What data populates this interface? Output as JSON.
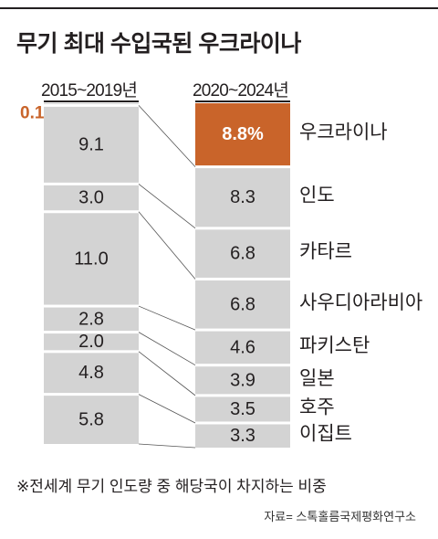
{
  "title": "무기 최대 수입국된 우크라이나",
  "note": "※전세계 무기 인도량 중 해당국이 차지하는 비중",
  "source": "자료= 스톡홀름국제평화연구소",
  "colors": {
    "highlight": "#c9642a",
    "bar": "#d3d3d3",
    "text": "#231f20"
  },
  "chart_data": {
    "type": "bar",
    "stacked": true,
    "orientation": "vertical",
    "unit": "%",
    "columns": [
      "2015~2019년",
      "2020~2024년"
    ],
    "categories": [
      "우크라이나",
      "인도",
      "카타르",
      "사우디아라비아",
      "파키스탄",
      "일본",
      "호주",
      "이집트"
    ],
    "labels_2015_2019": [
      "0.1",
      "9.1",
      "3.0",
      "11.0",
      "2.8",
      "2.0",
      "4.8",
      "5.8"
    ],
    "labels_2020_2024": [
      "8.8%",
      "8.3",
      "6.8",
      "6.8",
      "4.6",
      "3.9",
      "3.5",
      "3.3"
    ],
    "series": [
      {
        "values": [
          0.1,
          9.1,
          3.0,
          11.0,
          2.8,
          2.0,
          4.8,
          5.8
        ]
      },
      {
        "values": [
          8.8,
          8.3,
          6.8,
          6.8,
          4.6,
          3.9,
          3.5,
          3.3
        ]
      }
    ],
    "highlight_category": "우크라이나"
  }
}
